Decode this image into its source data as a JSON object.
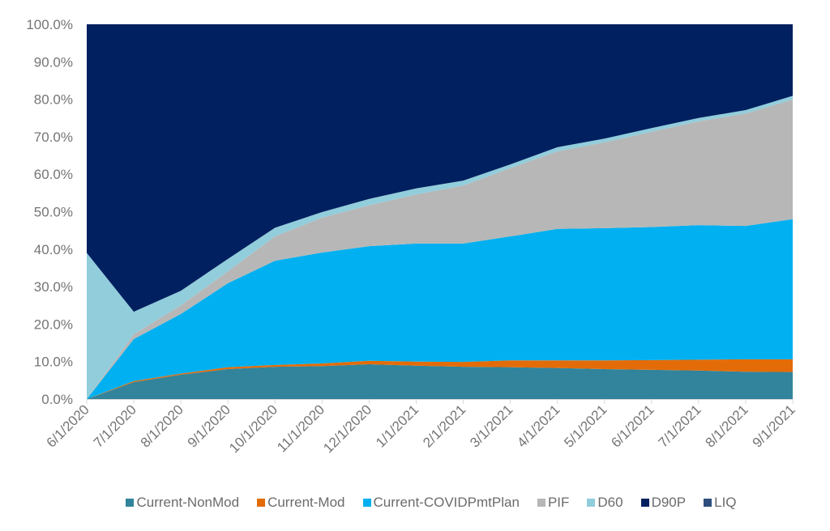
{
  "chart_data": {
    "type": "area",
    "stacked": true,
    "percent_stacked": true,
    "title": "",
    "xlabel": "",
    "ylabel": "",
    "ylim": [
      0,
      100
    ],
    "yticks": [
      "0.0%",
      "10.0%",
      "20.0%",
      "30.0%",
      "40.0%",
      "50.0%",
      "60.0%",
      "70.0%",
      "80.0%",
      "90.0%",
      "100.0%"
    ],
    "ytick_values": [
      0,
      10,
      20,
      30,
      40,
      50,
      60,
      70,
      80,
      90,
      100
    ],
    "categories": [
      "6/1/2020",
      "7/1/2020",
      "8/1/2020",
      "9/1/2020",
      "10/1/2020",
      "11/1/2020",
      "12/1/2020",
      "1/1/2021",
      "2/1/2021",
      "3/1/2021",
      "4/1/2021",
      "5/1/2021",
      "6/1/2021",
      "7/1/2021",
      "8/1/2021",
      "9/1/2021"
    ],
    "legend_position": "bottom",
    "grid": false,
    "series": [
      {
        "name": "Current-NonMod",
        "color": "#31849b",
        "values": [
          0,
          4.5,
          6.5,
          8.0,
          8.6,
          8.8,
          9.3,
          8.9,
          8.6,
          8.5,
          8.3,
          8.0,
          7.8,
          7.6,
          7.3,
          7.2
        ]
      },
      {
        "name": "Current-Mod",
        "color": "#e36c09",
        "values": [
          0,
          0.3,
          0.3,
          0.5,
          0.5,
          0.7,
          0.9,
          1.1,
          1.3,
          1.8,
          2.0,
          2.3,
          2.6,
          2.9,
          3.3,
          3.4
        ]
      },
      {
        "name": "Current-COVIDPmtPlan",
        "color": "#00b0f0",
        "values": [
          0,
          11.2,
          15.9,
          22.4,
          27.8,
          29.6,
          30.6,
          31.5,
          31.6,
          33.1,
          35.1,
          35.3,
          35.5,
          35.9,
          35.6,
          37.4
        ]
      },
      {
        "name": "PIF",
        "color": "#b7b7b7",
        "values": [
          0,
          1.3,
          2.3,
          3.2,
          6.5,
          9.3,
          10.9,
          13.1,
          15.5,
          18.2,
          20.7,
          22.9,
          25.4,
          27.7,
          30.0,
          31.9
        ]
      },
      {
        "name": "D60",
        "color": "#92cddc",
        "values": [
          39.0,
          6.0,
          3.9,
          3.3,
          2.3,
          1.5,
          1.7,
          1.6,
          1.3,
          1.0,
          1.1,
          1.0,
          1.0,
          0.9,
          0.9,
          1.0
        ]
      },
      {
        "name": "D90P",
        "color": "#002060",
        "values": [
          61.0,
          76.7,
          71.1,
          62.6,
          54.3,
          50.1,
          46.6,
          43.8,
          41.7,
          37.4,
          32.8,
          30.5,
          27.7,
          25.0,
          22.9,
          19.1
        ]
      },
      {
        "name": "LIQ",
        "color": "#2e4e7e",
        "values": [
          0,
          0,
          0,
          0,
          0,
          0,
          0,
          0,
          0,
          0,
          0,
          0,
          0,
          0,
          0,
          0
        ]
      }
    ]
  }
}
